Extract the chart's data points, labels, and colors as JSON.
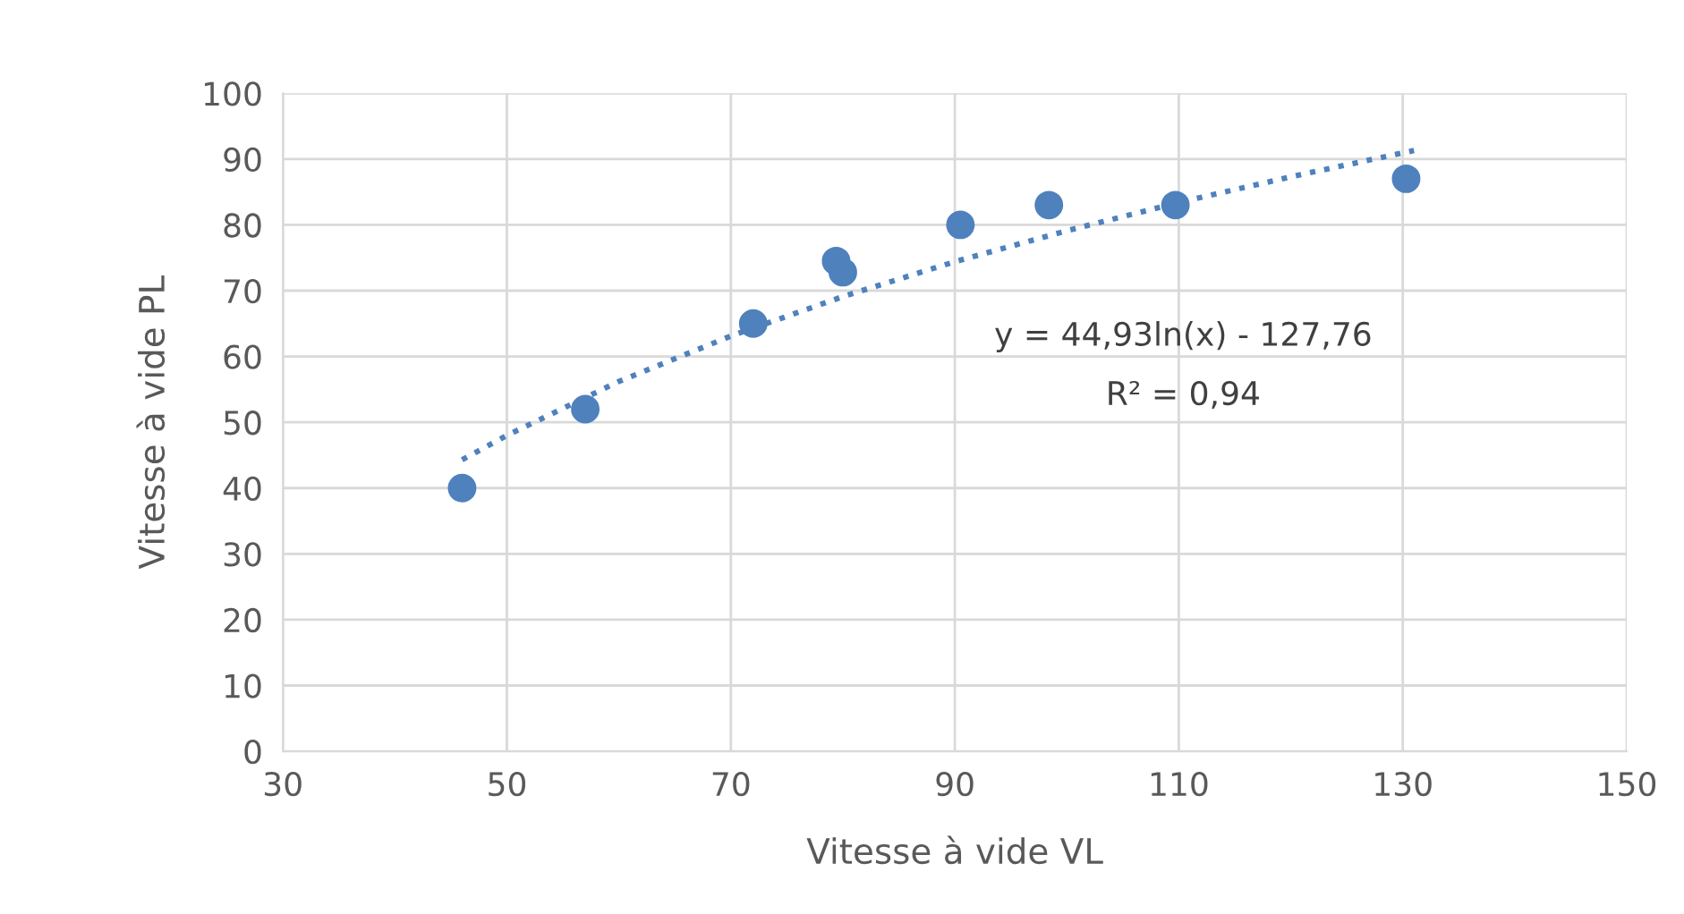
{
  "chart_data": {
    "type": "scatter",
    "xlabel": "Vitesse à vide VL",
    "ylabel": "Vitesse à vide PL",
    "xlim": [
      30,
      150
    ],
    "xticks": [
      30,
      50,
      70,
      90,
      110,
      130,
      150
    ],
    "ylim": [
      0,
      100
    ],
    "yticks": [
      0,
      10,
      20,
      30,
      40,
      50,
      60,
      70,
      80,
      90,
      100
    ],
    "grid": true,
    "legend": false,
    "marker": "circle",
    "series": [
      {
        "color": "#4f81bd",
        "x": [
          46,
          57,
          72,
          79.4,
          80,
          90.5,
          98.4,
          109.7,
          130.3
        ],
        "values": [
          40,
          52,
          65,
          74.5,
          72.8,
          80,
          83,
          83,
          87
        ]
      },
      {
        "type": "line",
        "color": "#4f81bd",
        "line_style": "dotted",
        "marker": "none",
        "x": [
          46,
          50,
          60,
          70,
          80,
          90,
          100,
          110,
          120,
          131
        ],
        "values": [
          44.3,
          48,
          56.2,
          63.1,
          69.1,
          74.4,
          79.1,
          83.4,
          87.3,
          91.3
        ]
      }
    ],
    "annotations": [
      "y = 44,93ln(x) - 127,76",
      "R² = 0,94"
    ]
  }
}
